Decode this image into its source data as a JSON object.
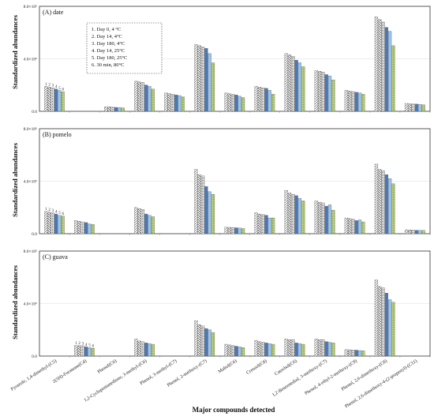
{
  "xlabel": "Major compounds detected",
  "ylabel": "Standardized abundances",
  "legend_title": "",
  "series_colors": [
    "#ffffff",
    "#9a9a9a",
    "#b8b8b8",
    "#4a78b5",
    "#9ec4e8",
    "#b9d07a"
  ],
  "series_numbers": [
    "1",
    "2",
    "3",
    "4",
    "5",
    "6"
  ],
  "y_ticks": [
    "0.0",
    "4.0×10⁶",
    "8.0×10⁶"
  ],
  "chart_data": [
    {
      "type": "bar",
      "panel_label": "(A) date",
      "ylim": [
        0,
        8000000
      ],
      "categories": [
        "Pyrazole, 1,4-dimethyl-(C5)",
        "2(5H)-Furanone(C4)",
        "Phenol(C6)",
        "1,2-Cyclopentanedione, 3-methyl-(C6)",
        "Phenol, 3-methyl-(C7)",
        "Phenol, 2-methoxy-(C7)",
        "Maltol(C6)",
        "Creosol(C8)",
        "Catechol(C6)",
        "1,2-Benzenediol, 3-methoxy-(C7)",
        "Phenol, 4-ethyl-2-methoxy-(C9)",
        "Phenol, 2,6-dimethoxy-(C8)",
        "Phenol, 2,6-dimethoxy-4-(2-propenyl)-(C11)"
      ],
      "series": [
        {
          "name": "1. Day 0, 4 °C",
          "values": [
            1900000,
            0,
            350000,
            2300000,
            1400000,
            5100000,
            1400000,
            1900000,
            4400000,
            3100000,
            1600000,
            7200000,
            600000
          ]
        },
        {
          "name": "2. Day 14, 4°C",
          "values": [
            1850000,
            0,
            340000,
            2250000,
            1350000,
            5000000,
            1350000,
            1850000,
            4300000,
            3050000,
            1550000,
            7000000,
            580000
          ]
        },
        {
          "name": "3. Day 180, 4°C",
          "values": [
            1800000,
            0,
            330000,
            2200000,
            1300000,
            4900000,
            1300000,
            1800000,
            4200000,
            3000000,
            1500000,
            6800000,
            570000
          ]
        },
        {
          "name": "4. Day 14, 25°C",
          "values": [
            1700000,
            0,
            300000,
            2000000,
            1250000,
            4800000,
            1250000,
            1750000,
            3900000,
            2800000,
            1450000,
            6400000,
            550000
          ]
        },
        {
          "name": "5. Day 180, 25°C",
          "values": [
            1600000,
            0,
            290000,
            1900000,
            1200000,
            4400000,
            1150000,
            1600000,
            3700000,
            2700000,
            1400000,
            6100000,
            530000
          ]
        },
        {
          "name": "6. 30 min, 80°C",
          "values": [
            1500000,
            0,
            270000,
            1700000,
            1100000,
            3700000,
            1050000,
            1300000,
            3400000,
            2400000,
            1300000,
            5000000,
            500000
          ]
        }
      ],
      "bar_number_labels_on_category": 0
    },
    {
      "type": "bar",
      "panel_label": "(B) pomelo",
      "ylim": [
        0,
        8000000
      ],
      "categories": [
        "Pyrazole, 1,4-dimethyl-(C5)",
        "2(5H)-Furanone(C4)",
        "Phenol(C6)",
        "1,2-Cyclopentanedione, 3-methyl-(C6)",
        "Phenol, 3-methyl-(C7)",
        "Phenol, 2-methoxy-(C7)",
        "Maltol(C6)",
        "Creosol(C8)",
        "Catechol(C6)",
        "1,2-Benzenediol, 3-methoxy-(C7)",
        "Phenol, 4-ethyl-2-methoxy-(C9)",
        "Phenol, 2,6-dimethoxy-(C8)",
        "Phenol, 2,6-dimethoxy-4-(2-propenyl)-(C11)"
      ],
      "series": [
        {
          "name": "1. Day 0, 4 °C",
          "values": [
            1700000,
            1000000,
            0,
            2000000,
            0,
            4900000,
            500000,
            1600000,
            3300000,
            2500000,
            1200000,
            5300000,
            300000
          ]
        },
        {
          "name": "2. Day 14, 4°C",
          "values": [
            1650000,
            950000,
            0,
            1900000,
            0,
            4500000,
            480000,
            1500000,
            3100000,
            2400000,
            1150000,
            4900000,
            280000
          ]
        },
        {
          "name": "3. Day 180, 4°C",
          "values": [
            1600000,
            900000,
            0,
            1850000,
            0,
            4400000,
            470000,
            1450000,
            3000000,
            2350000,
            1100000,
            4800000,
            270000
          ]
        },
        {
          "name": "4. Day 14, 25°C",
          "values": [
            1500000,
            850000,
            0,
            1500000,
            0,
            3600000,
            450000,
            1400000,
            2900000,
            2100000,
            1000000,
            4500000,
            260000
          ]
        },
        {
          "name": "5. Day 180, 25°C",
          "values": [
            1400000,
            750000,
            0,
            1400000,
            0,
            3200000,
            430000,
            1200000,
            2700000,
            2200000,
            1050000,
            4200000,
            250000
          ]
        },
        {
          "name": "6. 30 min, 80°C",
          "values": [
            1350000,
            700000,
            0,
            1300000,
            0,
            3000000,
            400000,
            1200000,
            2500000,
            1800000,
            900000,
            3800000,
            250000
          ]
        }
      ],
      "bar_number_labels_on_category": 0
    },
    {
      "type": "bar",
      "panel_label": "(C) guava",
      "ylim": [
        0,
        8000000
      ],
      "categories": [
        "Pyrazole, 1,4-dimethyl-(C5)",
        "2(5H)-Furanone(C4)",
        "Phenol(C6)",
        "1,2-Cyclopentanedione, 3-methyl-(C6)",
        "Phenol, 3-methyl-(C7)",
        "Phenol, 2-methoxy-(C7)",
        "Maltol(C6)",
        "Creosol(C8)",
        "Catechol(C6)",
        "1,2-Benzenediol, 3-methoxy-(C7)",
        "Phenol, 4-ethyl-2-methoxy-(C9)",
        "Phenol, 2,6-dimethoxy-(C8)",
        "Phenol, 2,6-dimethoxy-4-(2-propenyl)-(C11)"
      ],
      "series": [
        {
          "name": "1. Day 0, 4 °C",
          "values": [
            0,
            800000,
            0,
            1300000,
            0,
            2700000,
            900000,
            1200000,
            1300000,
            1300000,
            500000,
            5800000,
            0
          ]
        },
        {
          "name": "2. Day 14, 4°C",
          "values": [
            0,
            800000,
            0,
            1150000,
            0,
            2400000,
            850000,
            1100000,
            1250000,
            1250000,
            480000,
            5300000,
            0
          ]
        },
        {
          "name": "3. Day 180, 4°C",
          "values": [
            0,
            780000,
            0,
            1100000,
            0,
            2300000,
            800000,
            1050000,
            1250000,
            1250000,
            470000,
            5200000,
            0
          ]
        },
        {
          "name": "4. Day 14, 25°C",
          "values": [
            0,
            700000,
            0,
            1000000,
            0,
            2100000,
            750000,
            1000000,
            1000000,
            1100000,
            450000,
            4800000,
            0
          ]
        },
        {
          "name": "5. Day 180, 25°C",
          "values": [
            0,
            650000,
            0,
            950000,
            0,
            2000000,
            700000,
            950000,
            950000,
            1050000,
            420000,
            4300000,
            0
          ]
        },
        {
          "name": "6. 30 min, 80°C",
          "values": [
            0,
            600000,
            0,
            900000,
            0,
            1800000,
            650000,
            900000,
            900000,
            1000000,
            400000,
            4100000,
            0
          ]
        }
      ],
      "bar_number_labels_on_category": 1
    }
  ]
}
